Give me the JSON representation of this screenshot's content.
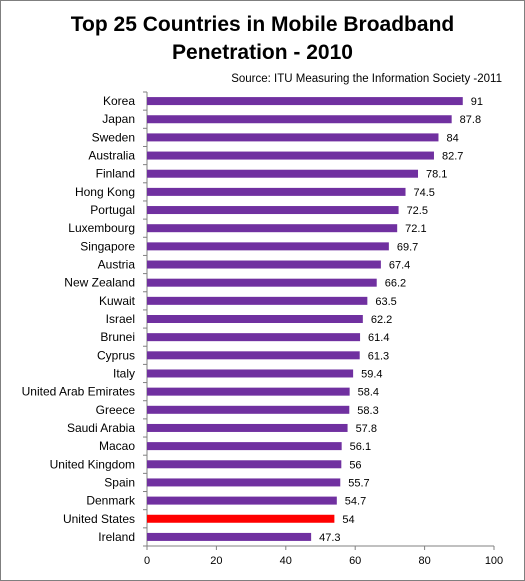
{
  "colors": {
    "bar": "#7030a0",
    "highlight": "#ff0000",
    "axis": "#808080"
  },
  "chart_data": {
    "type": "bar",
    "orientation": "horizontal",
    "title_lines": [
      "Top 25 Countries in Mobile Broadband",
      "Penetration - 2010"
    ],
    "source": "Source: ITU Measuring the Information Society -2011",
    "xlabel": "",
    "ylabel": "",
    "xlim": [
      0,
      100
    ],
    "xticks": [
      0,
      20,
      40,
      60,
      80,
      100
    ],
    "grid": false,
    "legend": "none",
    "highlight_category": "United States",
    "categories": [
      "Korea",
      "Japan",
      "Sweden",
      "Australia",
      "Finland",
      "Hong Kong",
      "Portugal",
      "Luxembourg",
      "Singapore",
      "Austria",
      "New Zealand",
      "Kuwait",
      "Israel",
      "Brunei",
      "Cyprus",
      "Italy",
      "United Arab Emirates",
      "Greece",
      "Saudi Arabia",
      "Macao",
      "United Kingdom",
      "Spain",
      "Denmark",
      "United States",
      "Ireland"
    ],
    "values": [
      91,
      87.8,
      84,
      82.7,
      78.1,
      74.5,
      72.5,
      72.1,
      69.7,
      67.4,
      66.2,
      63.5,
      62.2,
      61.4,
      61.3,
      59.4,
      58.4,
      58.3,
      57.8,
      56.1,
      56,
      55.7,
      54.7,
      54,
      47.3
    ],
    "value_labels": [
      "91",
      "87.8",
      "84",
      "82.7",
      "78.1",
      "74.5",
      "72.5",
      "72.1",
      "69.7",
      "67.4",
      "66.2",
      "63.5",
      "62.2",
      "61.4",
      "61.3",
      "59.4",
      "58.4",
      "58.3",
      "57.8",
      "56.1",
      "56",
      "55.7",
      "54.7",
      "54",
      "47.3"
    ]
  }
}
